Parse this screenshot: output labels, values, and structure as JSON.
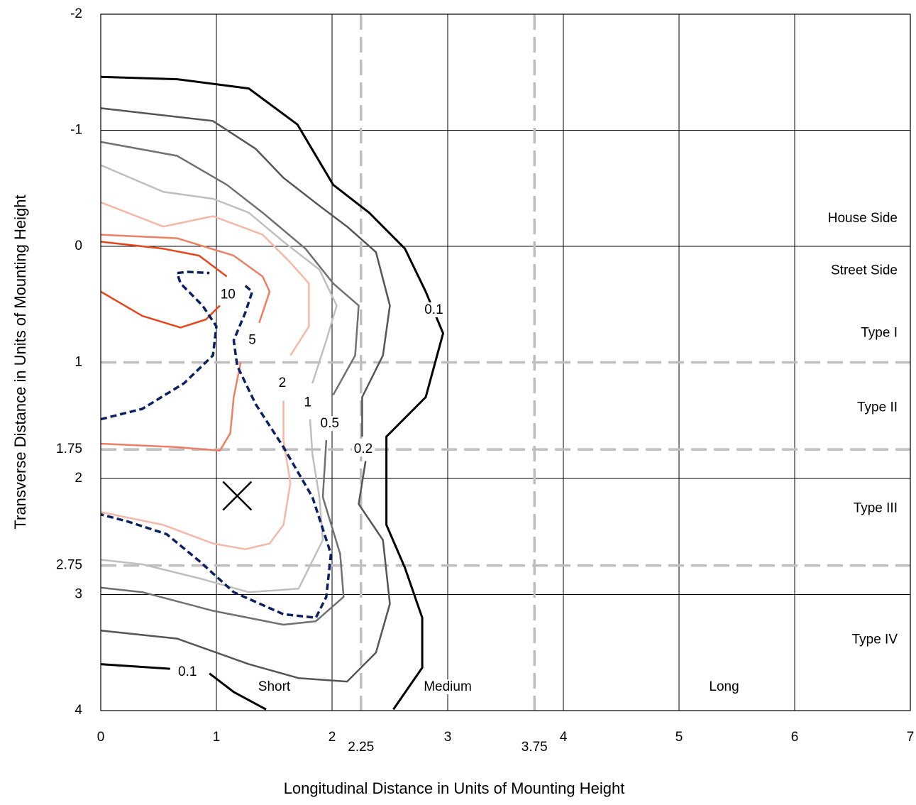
{
  "chart_data": {
    "type": "line",
    "x_label": "Longitudinal Distance in Units of Mounting Height",
    "y_label": "Transverse Distance in Units of Mounting Height",
    "xlim": [
      0,
      7
    ],
    "ylim": [
      -2,
      4
    ],
    "y_inverted": true,
    "xticks": [
      0,
      1,
      2,
      2.25,
      3,
      3.75,
      4,
      5,
      6,
      7
    ],
    "yticks": [
      -2,
      -1,
      0,
      1,
      1.75,
      2,
      2.75,
      3,
      4
    ],
    "x_reference_lines": [
      2.25,
      3.75
    ],
    "y_reference_lines": [
      1,
      1.75,
      2.75
    ],
    "grid": true,
    "series": [
      {
        "color": "#000000",
        "width": 3,
        "x": [
          0,
          0.66,
          1.28,
          1.7,
          2.01,
          2.32,
          2.63,
          2.81,
          2.96,
          2.81,
          2.47,
          2.47,
          2.63,
          2.78,
          2.78,
          2.53,
          null,
          0,
          0.6,
          null,
          0.94,
          1.15,
          1.43
        ],
        "y": [
          -1.46,
          -1.44,
          -1.36,
          -1.05,
          -0.53,
          -0.29,
          0.02,
          0.39,
          0.75,
          1.3,
          1.64,
          2.4,
          2.77,
          3.2,
          3.63,
          3.99,
          null,
          3.6,
          3.64,
          null,
          3.68,
          3.84,
          3.99
        ]
      },
      {
        "color": "#555555",
        "width": 2.5,
        "x": [
          0,
          0.97,
          1.34,
          1.58,
          1.89,
          2.13,
          2.38,
          2.5,
          2.44,
          2.26,
          2.26,
          null,
          2.29,
          2.23,
          2.44,
          2.5,
          2.38,
          2.13,
          1.71,
          1.28,
          0.66,
          0
        ],
        "y": [
          -1.19,
          -1.08,
          -0.84,
          -0.59,
          -0.35,
          -0.17,
          0.05,
          0.51,
          0.94,
          1.3,
          1.64,
          null,
          1.85,
          2.22,
          2.53,
          3.08,
          3.5,
          3.75,
          3.72,
          3.6,
          3.38,
          3.31
        ]
      },
      {
        "color": "#707070",
        "width": 2.5,
        "x": [
          0,
          0.66,
          1.09,
          1.4,
          1.77,
          2.01,
          2.23,
          2.2,
          2.01,
          null,
          1.95,
          1.92,
          2.07,
          2.1,
          1.86,
          1.58,
          0.97,
          0.36,
          0
        ],
        "y": [
          -0.9,
          -0.78,
          -0.53,
          -0.29,
          0.02,
          0.32,
          0.51,
          0.94,
          1.28,
          null,
          1.67,
          2.16,
          2.65,
          3.02,
          3.23,
          3.26,
          3.14,
          2.98,
          2.94
        ]
      },
      {
        "color": "#bfbfbf",
        "width": 2.5,
        "x": [
          0,
          0.54,
          0.97,
          1.28,
          1.58,
          1.89,
          2.04,
          1.95,
          1.83,
          null,
          1.81,
          1.83,
          1.89,
          1.92,
          1.71,
          1.28,
          0.85,
          0.36,
          0
        ],
        "y": [
          -0.7,
          -0.47,
          -0.41,
          -0.29,
          -0.04,
          0.2,
          0.51,
          0.81,
          1.18,
          null,
          1.49,
          1.79,
          2.16,
          2.53,
          2.95,
          2.98,
          2.86,
          2.74,
          2.7
        ]
      },
      {
        "color": "#f6b8a6",
        "width": 2.5,
        "x": [
          0,
          0.54,
          0.97,
          1.4,
          1.64,
          1.8,
          1.8,
          1.64,
          null,
          1.58,
          1.58,
          1.64,
          1.58,
          1.46,
          1.25,
          0.97,
          0.54,
          0
        ],
        "y": [
          -0.38,
          -0.17,
          -0.26,
          -0.1,
          0.14,
          0.32,
          0.69,
          0.94,
          null,
          1.33,
          1.67,
          2.04,
          2.4,
          2.56,
          2.61,
          2.56,
          2.4,
          2.29
        ]
      },
      {
        "color": "#ef7f62",
        "width": 2.5,
        "x": [
          0,
          0.66,
          1.15,
          1.4,
          1.46,
          1.4,
          1.37,
          null,
          1.21,
          1.15,
          1.12,
          1.03,
          0.66,
          0
        ],
        "y": [
          -0.1,
          -0.07,
          0.08,
          0.26,
          0.39,
          0.57,
          0.66,
          null,
          1.0,
          1.3,
          1.61,
          1.76,
          1.73,
          1.7
        ]
      },
      {
        "color": "#e8461a",
        "width": 2.5,
        "x": [
          0,
          0.54,
          0.85,
          1.09,
          null,
          1.03,
          0.91,
          0.69,
          0.36,
          0
        ],
        "y": [
          -0.04,
          0.02,
          0.08,
          0.26,
          null,
          0.51,
          0.63,
          0.7,
          0.6,
          0.39
        ]
      },
      {
        "color": "#0b2161",
        "width": 3.5,
        "dashed": true,
        "x": [
          0,
          0.36,
          0.72,
          0.97,
          1.0,
          0.88,
          0.69,
          0.66,
          0.75,
          0.94,
          null,
          1.25,
          1.31,
          1.25,
          1.15,
          1.18,
          1.34,
          1.58,
          1.83,
          1.99,
          1.95,
          1.86,
          1.58,
          1.15,
          0.85,
          0.57,
          0.23,
          0
        ],
        "y": [
          1.49,
          1.4,
          1.18,
          0.94,
          0.69,
          0.51,
          0.32,
          0.23,
          0.22,
          0.23,
          null,
          0.34,
          0.39,
          0.57,
          0.81,
          1.03,
          1.36,
          1.73,
          2.16,
          2.65,
          3.02,
          3.2,
          3.17,
          2.98,
          2.71,
          2.48,
          2.37,
          2.31
        ]
      }
    ],
    "annotations": [
      {
        "text": "10",
        "x": 1.1,
        "y": 0.42
      },
      {
        "text": "5",
        "x": 1.31,
        "y": 0.81
      },
      {
        "text": "2",
        "x": 1.57,
        "y": 1.18
      },
      {
        "text": "1",
        "x": 1.79,
        "y": 1.35
      },
      {
        "text": "0.5",
        "x": 1.98,
        "y": 1.53
      },
      {
        "text": "0.2",
        "x": 2.27,
        "y": 1.75
      },
      {
        "text": "0.1",
        "x": 2.88,
        "y": 0.55
      },
      {
        "text": "0.1",
        "x": 0.75,
        "y": 3.67
      }
    ],
    "side_labels": [
      {
        "text": "House Side",
        "y": -0.24
      },
      {
        "text": "Street Side",
        "y": 0.21
      },
      {
        "text": "Type I",
        "y": 0.75
      },
      {
        "text": "Type II",
        "y": 1.39
      },
      {
        "text": "Type III",
        "y": 2.26
      },
      {
        "text": "Type IV",
        "y": 3.39
      }
    ],
    "range_labels": [
      {
        "text": "Short",
        "x": 1.5
      },
      {
        "text": "Medium",
        "x": 3.0
      },
      {
        "text": "Long",
        "x": 5.39
      }
    ],
    "marker": {
      "x": 1.18,
      "y": 2.15
    }
  }
}
